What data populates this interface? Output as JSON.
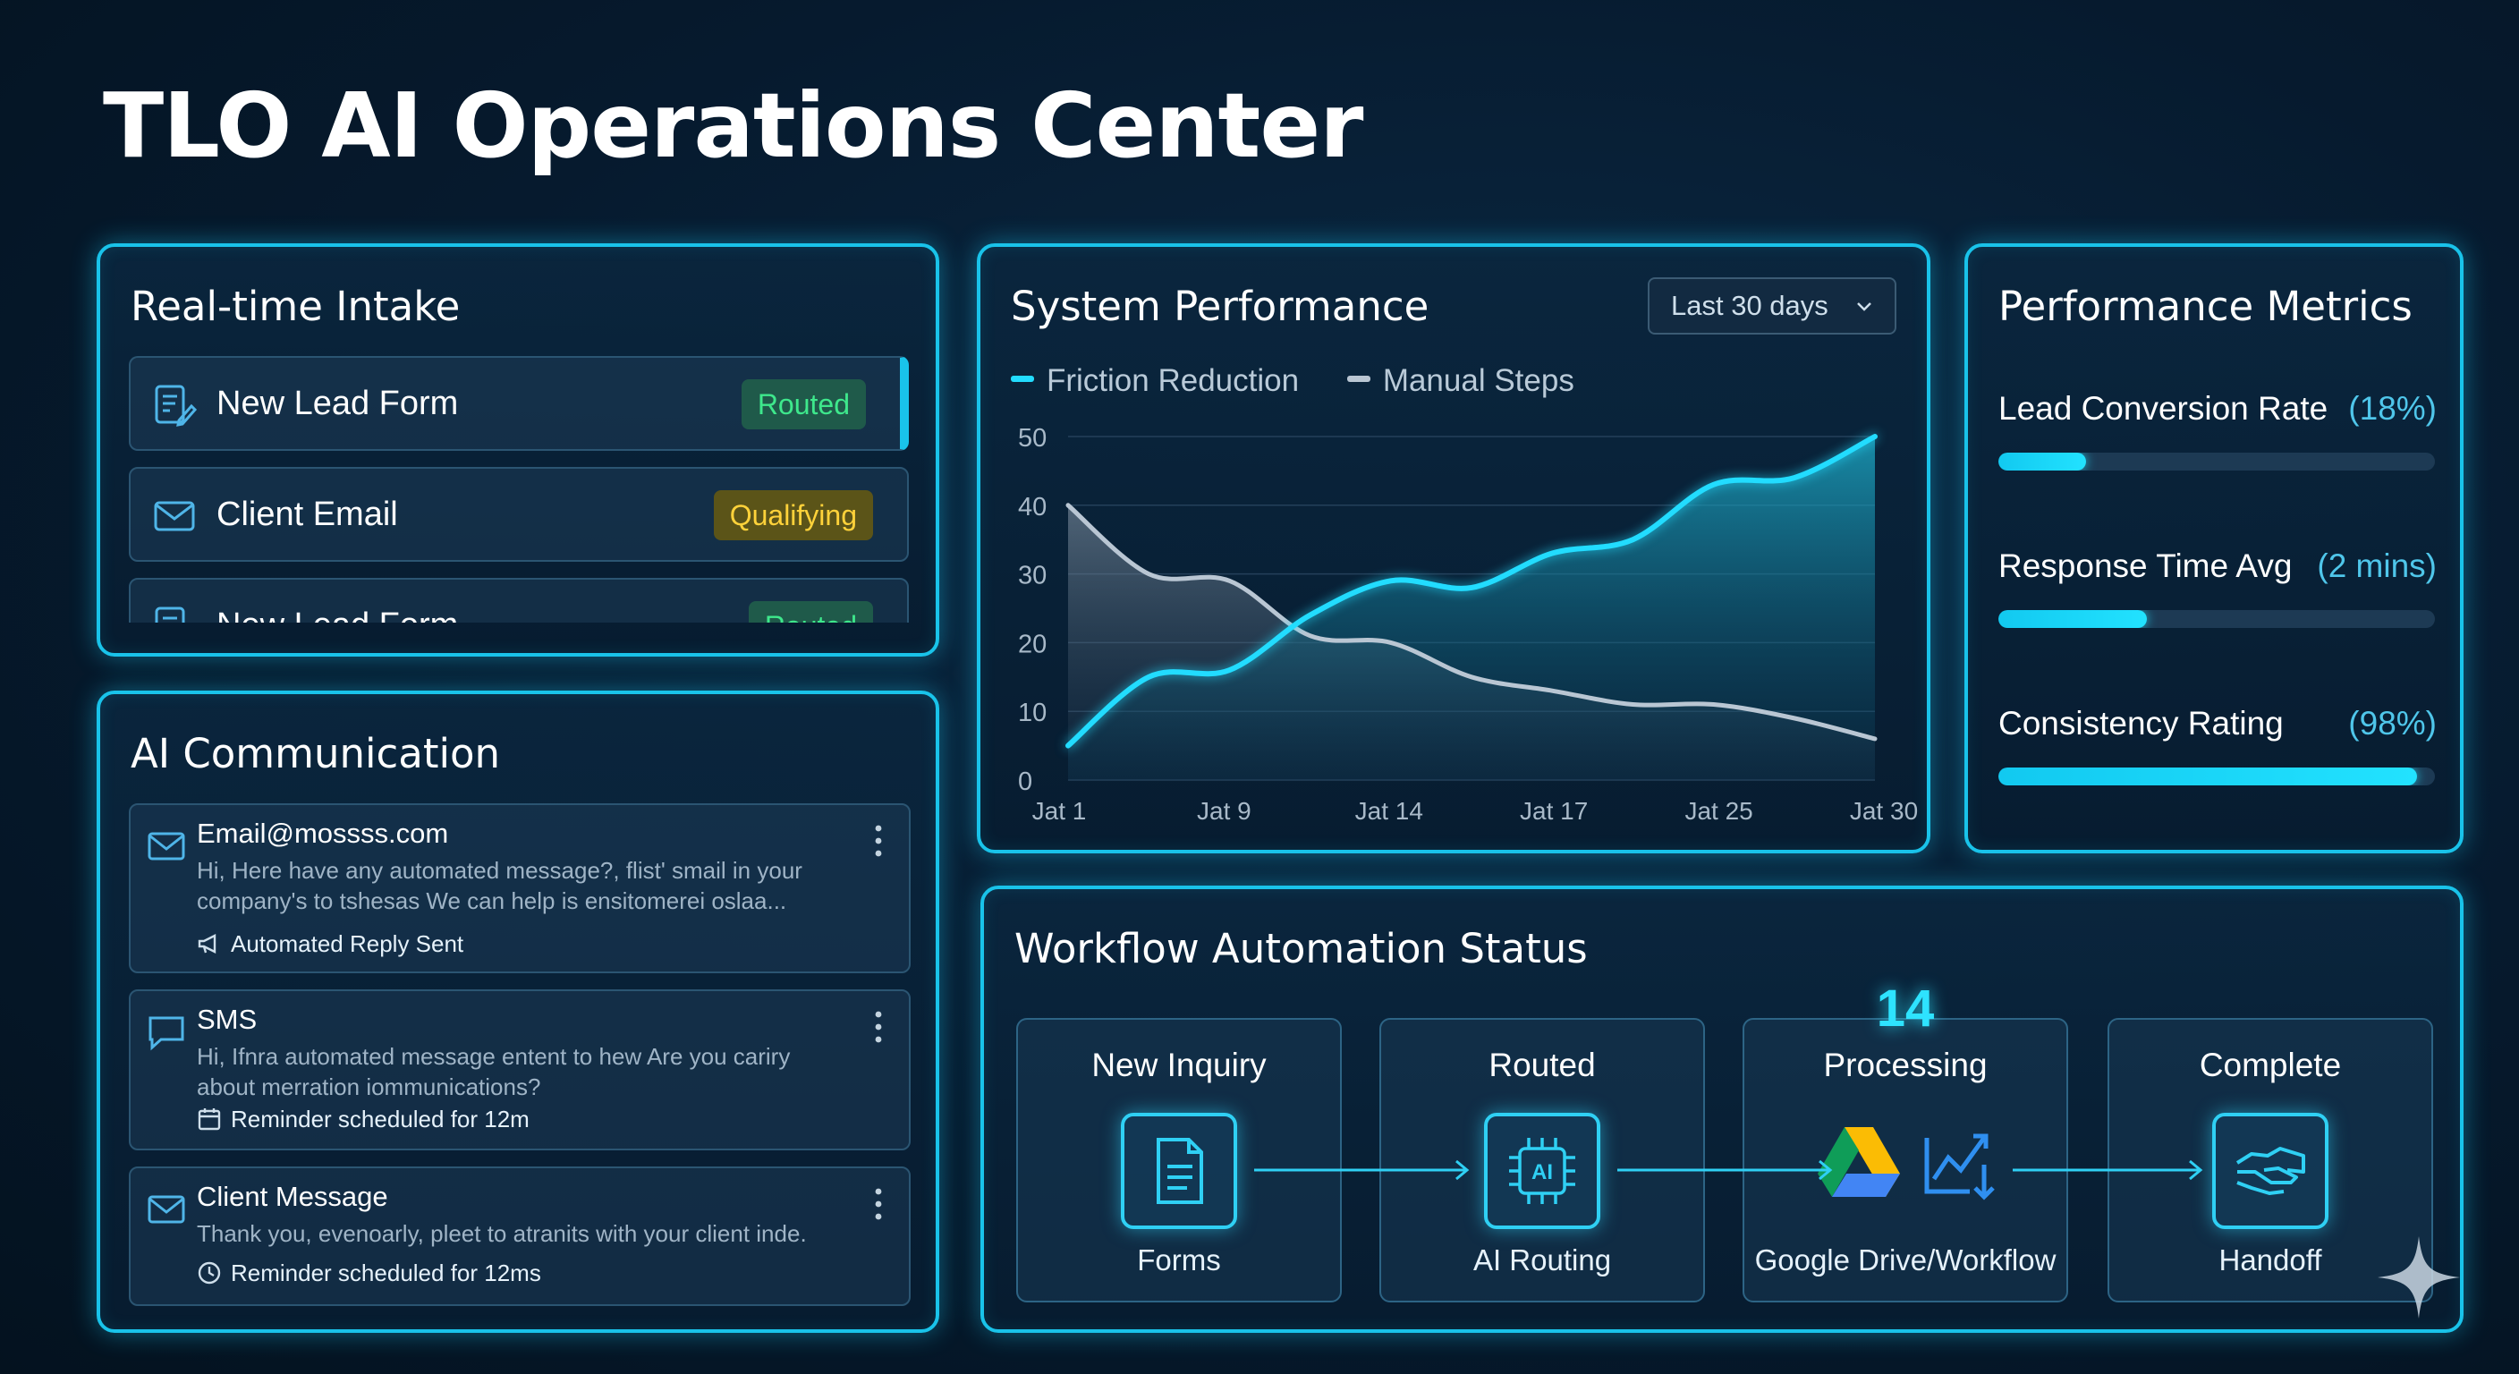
{
  "page": {
    "title": "TLO AI Operations Center"
  },
  "intake": {
    "title": "Real-time Intake",
    "items": [
      {
        "label": "New Lead Form",
        "status": "Routed",
        "icon": "form-edit-icon"
      },
      {
        "label": "Client Email",
        "status": "Qualifying",
        "icon": "mail-icon"
      },
      {
        "label": "New Lead Form",
        "status": "Routed",
        "icon": "form-edit-icon"
      }
    ]
  },
  "comm": {
    "title": "AI Communication",
    "items": [
      {
        "title": "Email@mossss.com",
        "body": "Hi, Here have any automated message?, flist' smail in your company's to tshesas We can help is ensitomerei oslaa...",
        "footer": "Automated Reply Sent",
        "icon": "mail-icon",
        "footer_icon": "megaphone-icon"
      },
      {
        "title": "SMS",
        "body": "Hi, Ifnra automated message entent to hew Are you cariry about merration iommunications?",
        "footer": "Reminder scheduled for 12m",
        "icon": "chat-bubble-icon",
        "footer_icon": "calendar-icon"
      },
      {
        "title": "Client Message",
        "body": "Thank you, evenoarly, pleet to atranits with your client inde.",
        "footer": "Reminder scheduled for 12ms",
        "icon": "mail-icon",
        "footer_icon": "clock-icon"
      }
    ]
  },
  "performance": {
    "title": "System Performance",
    "range": "Last 30 days"
  },
  "chart_data": {
    "type": "area",
    "categories": [
      "Jat 1",
      "Jat 9",
      "Jat 14",
      "Jat 17",
      "Jat 25",
      "Jat 30"
    ],
    "x": [
      0,
      0.5,
      1,
      1.5,
      2,
      2.5,
      3,
      3.5,
      4,
      4.5,
      5
    ],
    "series": [
      {
        "name": "Friction Reduction",
        "color": "#22dcff",
        "values": [
          5,
          15,
          16,
          24,
          29,
          28,
          33,
          35,
          43,
          44,
          50
        ]
      },
      {
        "name": "Manual Steps",
        "color": "#b9c6d3",
        "values": [
          40,
          30,
          29,
          21,
          20,
          15,
          13,
          11,
          11,
          9,
          6
        ]
      }
    ],
    "yticks": [
      "50",
      "40",
      "30",
      "20",
      "10",
      "0"
    ],
    "ylim": [
      0,
      50
    ],
    "grid": true,
    "legend": "top-left"
  },
  "metrics": {
    "title": "Performance Metrics",
    "items": [
      {
        "label": "Lead Conversion Rate",
        "value": "(18%)",
        "fraction": 0.2
      },
      {
        "label": "Response Time Avg",
        "value": "(2 mins)",
        "fraction": 0.34
      },
      {
        "label": "Consistency Rating",
        "value": "(98%)",
        "fraction": 0.96
      }
    ]
  },
  "workflow": {
    "title": "Workflow Automation Status",
    "stages": [
      {
        "name": "New Inquiry",
        "caption": "Forms",
        "icon": "document-icon"
      },
      {
        "name": "Routed",
        "caption": "AI Routing",
        "icon": "ai-chip-icon"
      },
      {
        "name": "Processing",
        "caption": "Google Drive/Workflow",
        "icon": "drive-icon",
        "count": "14"
      },
      {
        "name": "Complete",
        "caption": "Handoff",
        "icon": "handshake-icon"
      }
    ]
  }
}
